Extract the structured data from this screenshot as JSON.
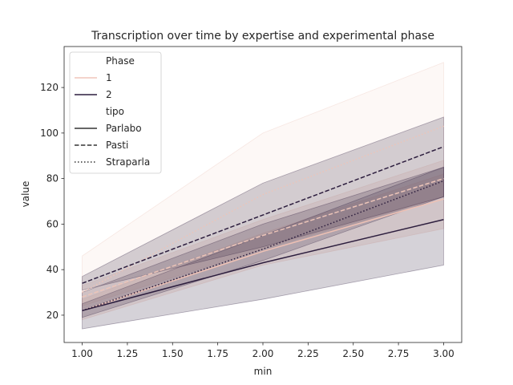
{
  "chart_data": {
    "type": "line",
    "title": "Transcription over time by expertise and experimental phase",
    "xlabel": "min",
    "ylabel": "value",
    "xlim": [
      0.9,
      3.1
    ],
    "ylim": [
      8,
      138
    ],
    "x_ticks": [
      "1.00",
      "1.25",
      "1.50",
      "1.75",
      "2.00",
      "2.25",
      "2.50",
      "2.75",
      "3.00"
    ],
    "y_ticks": [
      "20",
      "40",
      "60",
      "80",
      "100",
      "120"
    ],
    "grid": false,
    "legend": {
      "placement": "top-left",
      "hue_title": "Phase",
      "hue_entries": [
        {
          "label": "1",
          "color": "#f1c6bc"
        },
        {
          "label": "2",
          "color": "#2d1e3e"
        }
      ],
      "style_title": "tipo",
      "style_entries": [
        {
          "label": "Parlabo",
          "dash": "solid"
        },
        {
          "label": "Pasti",
          "dash": "dashed"
        },
        {
          "label": "Straparla",
          "dash": "dotted"
        }
      ]
    },
    "x": [
      1,
      2,
      3
    ],
    "series": [
      {
        "phase": "1",
        "tipo": "Parlabo",
        "color": "#eec1b4",
        "dash": "solid",
        "values": [
          22,
          48,
          71
        ],
        "ci_low": [
          18,
          42,
          58
        ],
        "ci_high": [
          27,
          56,
          82
        ],
        "band_opacity": 0.25
      },
      {
        "phase": "1",
        "tipo": "Pasti",
        "color": "#ecc4b8",
        "dash": "dashed",
        "values": [
          28,
          55,
          80
        ],
        "ci_low": [
          24,
          49,
          72
        ],
        "ci_high": [
          33,
          62,
          88
        ],
        "band_opacity": 0.25
      },
      {
        "phase": "1",
        "tipo": "Straparla",
        "color": "#ecc4b8",
        "dash": "dotted",
        "values": [
          30,
          73,
          103
        ],
        "ci_low": [
          23,
          48,
          72
        ],
        "ci_high": [
          46,
          100,
          131
        ],
        "band_opacity": 0.12
      },
      {
        "phase": "2",
        "tipo": "Parlabo",
        "color": "#2d1e3e",
        "dash": "solid",
        "values": [
          22,
          43,
          62
        ],
        "ci_low": [
          14,
          27,
          42
        ],
        "ci_high": [
          30,
          60,
          85
        ],
        "band_opacity": 0.2
      },
      {
        "phase": "2",
        "tipo": "Pasti",
        "color": "#2d1e3e",
        "dash": "dashed",
        "values": [
          34,
          64,
          94
        ],
        "ci_low": [
          31,
          50,
          72
        ],
        "ci_high": [
          37,
          78,
          107
        ],
        "band_opacity": 0.2
      },
      {
        "phase": "2",
        "tipo": "Straparla",
        "color": "#2d1e3e",
        "dash": "dotted",
        "values": [
          22,
          49,
          79
        ],
        "ci_low": [
          19,
          44,
          72
        ],
        "ci_high": [
          25,
          55,
          85
        ],
        "band_opacity": 0.2
      }
    ]
  }
}
